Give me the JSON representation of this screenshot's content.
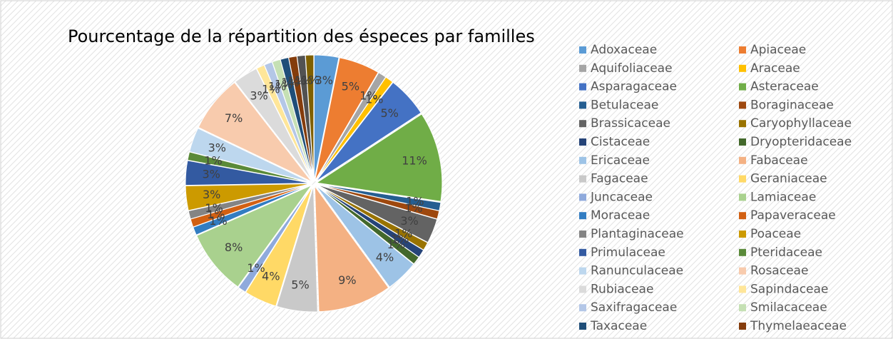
{
  "chart_data": {
    "type": "pie",
    "title": "Pourcentage de la répartition des éspeces par familles",
    "categories": [
      "Adoxaceae",
      "Apiaceae",
      "Aquifoliaceae",
      "Araceae",
      "Asparagaceae",
      "Asteraceae",
      "Betulaceae",
      "Boraginaceae",
      "Brassicaceae",
      "Caryophyllaceae",
      "Cistaceae",
      "Dryopteridaceae",
      "Ericaceae",
      "Fabaceae",
      "Fagaceae",
      "Geraniaceae",
      "Juncaceae",
      "Lamiaceae",
      "Moraceae",
      "Papaveraceae",
      "Plantaginaceae",
      "Poaceae",
      "Primulaceae",
      "Pteridaceae",
      "Ranunculaceae",
      "Rosaceae",
      "Rubiaceae",
      "Sapindaceae",
      "Saxifragaceae",
      "Smilacaceae",
      "Taxaceae",
      "Thymelaeaceae",
      null,
      null
    ],
    "values": [
      3,
      5,
      1,
      1,
      5,
      11,
      1,
      1,
      3,
      1,
      1,
      1,
      4,
      9,
      5,
      4,
      1,
      8,
      1,
      1,
      1,
      3,
      3,
      1,
      3,
      7,
      3,
      1,
      1,
      1,
      1,
      1,
      1,
      1
    ],
    "value_labels": [
      "3%",
      "5%",
      "1%",
      "1%",
      "5%",
      "11%",
      "1%",
      "1%",
      "3%",
      "1%",
      "1%",
      "1%",
      "4%",
      "9%",
      "5%",
      "4%",
      "1%",
      "8%",
      "1%",
      "1%",
      "1%",
      "3%",
      "3%",
      "1%",
      "3%",
      "7%",
      "3%",
      "1%",
      "1%",
      "1%",
      "1%",
      "1%",
      "1%",
      "1%"
    ],
    "colors": [
      "#5B9BD5",
      "#ED7D31",
      "#A5A5A5",
      "#FFC000",
      "#4472C4",
      "#70AD47",
      "#255E91",
      "#9E480E",
      "#636363",
      "#997300",
      "#264478",
      "#43682B",
      "#9DC3E6",
      "#F4B183",
      "#C9C9C9",
      "#FFD966",
      "#8FAADC",
      "#A9D18E",
      "#327DC2",
      "#D26012",
      "#848484",
      "#CC9A00",
      "#335AA1",
      "#5A8A39",
      "#BDD7EE",
      "#F8CBAD",
      "#DBDBDB",
      "#FFE699",
      "#B4C7E7",
      "#C5E0B4",
      "#1F4E79",
      "#843C0C",
      "#525252",
      "#7F6000"
    ],
    "legend": "right"
  }
}
